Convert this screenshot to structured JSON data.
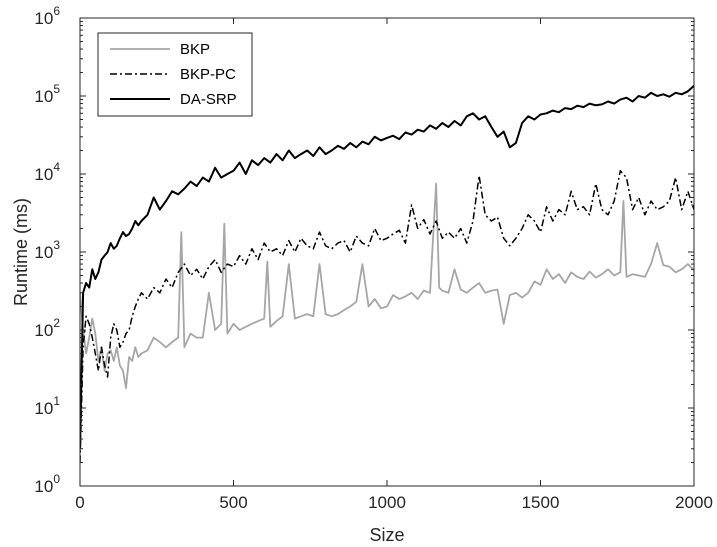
{
  "chart_data": {
    "type": "line",
    "title": "",
    "xlabel": "Size",
    "ylabel": "Runtime (ms)",
    "xlim": [
      0,
      2000
    ],
    "ylim": [
      1,
      1000000
    ],
    "yscale": "log",
    "grid": false,
    "legend_position": "top-left",
    "x_ticks": [
      0,
      500,
      1000,
      1500,
      2000
    ],
    "x_tick_labels": [
      "0",
      "500",
      "1000",
      "1500",
      "2000"
    ],
    "y_ticks": [
      1,
      10,
      100,
      1000,
      10000,
      100000,
      1000000
    ],
    "y_tick_base": "10",
    "y_tick_exponents": [
      "0",
      "1",
      "2",
      "3",
      "4",
      "5",
      "6"
    ],
    "series": [
      {
        "name": "BKP",
        "color": "#a6a6a6",
        "dash": "solid",
        "x": [
          0,
          10,
          20,
          30,
          40,
          50,
          60,
          70,
          80,
          90,
          100,
          110,
          120,
          130,
          140,
          150,
          160,
          170,
          180,
          190,
          200,
          220,
          240,
          260,
          280,
          300,
          320,
          330,
          340,
          360,
          380,
          400,
          420,
          440,
          460,
          470,
          480,
          500,
          520,
          540,
          560,
          580,
          600,
          610,
          620,
          640,
          660,
          680,
          700,
          720,
          740,
          760,
          780,
          800,
          820,
          840,
          860,
          880,
          900,
          920,
          940,
          960,
          980,
          1000,
          1020,
          1040,
          1060,
          1080,
          1100,
          1120,
          1140,
          1160,
          1170,
          1180,
          1200,
          1220,
          1240,
          1260,
          1280,
          1300,
          1320,
          1340,
          1360,
          1380,
          1400,
          1420,
          1440,
          1460,
          1480,
          1500,
          1520,
          1540,
          1560,
          1580,
          1600,
          1620,
          1640,
          1660,
          1680,
          1700,
          1720,
          1740,
          1760,
          1770,
          1780,
          1800,
          1820,
          1840,
          1860,
          1880,
          1900,
          1920,
          1940,
          1960,
          1980,
          2000
        ],
        "y": [
          300,
          100,
          50,
          80,
          140,
          90,
          40,
          60,
          30,
          50,
          55,
          40,
          60,
          35,
          30,
          18,
          45,
          40,
          60,
          45,
          50,
          55,
          80,
          70,
          60,
          70,
          80,
          1800,
          60,
          90,
          80,
          80,
          300,
          100,
          120,
          2300,
          90,
          120,
          100,
          110,
          120,
          130,
          140,
          750,
          110,
          130,
          150,
          700,
          140,
          150,
          160,
          150,
          700,
          160,
          150,
          160,
          180,
          200,
          230,
          700,
          200,
          250,
          190,
          200,
          280,
          250,
          270,
          300,
          250,
          320,
          300,
          7500,
          350,
          320,
          300,
          600,
          330,
          300,
          350,
          400,
          300,
          320,
          330,
          120,
          280,
          300,
          260,
          300,
          420,
          380,
          600,
          450,
          520,
          400,
          550,
          480,
          450,
          560,
          470,
          520,
          600,
          500,
          550,
          4500,
          480,
          520,
          500,
          480,
          700,
          1300,
          680,
          650,
          550,
          600,
          700,
          580
        ]
      },
      {
        "name": "BKP-PC",
        "color": "#000000",
        "dash": "dashdot",
        "x": [
          0,
          10,
          20,
          30,
          40,
          50,
          60,
          70,
          80,
          90,
          100,
          110,
          120,
          130,
          140,
          150,
          160,
          170,
          180,
          190,
          200,
          220,
          240,
          260,
          280,
          300,
          320,
          340,
          360,
          380,
          400,
          420,
          440,
          460,
          480,
          500,
          520,
          540,
          560,
          580,
          600,
          620,
          640,
          660,
          680,
          700,
          720,
          740,
          760,
          780,
          800,
          820,
          840,
          860,
          880,
          900,
          920,
          940,
          960,
          980,
          1000,
          1020,
          1040,
          1060,
          1080,
          1100,
          1120,
          1140,
          1160,
          1180,
          1200,
          1220,
          1240,
          1260,
          1280,
          1300,
          1320,
          1340,
          1360,
          1380,
          1400,
          1420,
          1440,
          1460,
          1480,
          1500,
          1520,
          1540,
          1560,
          1580,
          1600,
          1620,
          1640,
          1660,
          1680,
          1700,
          1720,
          1740,
          1760,
          1780,
          1800,
          1820,
          1840,
          1860,
          1880,
          1900,
          1920,
          1940,
          1960,
          1980,
          2000
        ],
        "y": [
          2,
          60,
          150,
          120,
          80,
          50,
          30,
          60,
          35,
          25,
          80,
          120,
          100,
          60,
          70,
          90,
          100,
          150,
          200,
          250,
          300,
          250,
          350,
          300,
          450,
          350,
          550,
          700,
          500,
          600,
          450,
          650,
          800,
          550,
          700,
          650,
          900,
          700,
          1100,
          800,
          1300,
          1000,
          1100,
          900,
          1400,
          1000,
          1500,
          1200,
          1100,
          1800,
          1200,
          1100,
          1300,
          1400,
          1000,
          1600,
          1300,
          1200,
          2000,
          1400,
          1500,
          1700,
          1900,
          1300,
          4000,
          2000,
          2600,
          1700,
          2500,
          1500,
          1800,
          1500,
          2000,
          1300,
          2500,
          9500,
          3000,
          2500,
          2800,
          1500,
          1200,
          1500,
          2000,
          3000,
          2500,
          1800,
          3800,
          2500,
          3500,
          3000,
          6000,
          3500,
          3800,
          3000,
          7500,
          3500,
          3000,
          4500,
          11000,
          9000,
          3500,
          5000,
          3000,
          4500,
          3500,
          3800,
          4500,
          9000,
          3500,
          6000,
          3500
        ]
      },
      {
        "name": "DA-SRP",
        "color": "#000000",
        "dash": "solid",
        "x": [
          0,
          10,
          20,
          30,
          40,
          50,
          60,
          70,
          80,
          90,
          100,
          110,
          120,
          130,
          140,
          150,
          160,
          170,
          180,
          190,
          200,
          220,
          240,
          260,
          280,
          300,
          320,
          340,
          360,
          380,
          400,
          420,
          440,
          460,
          480,
          500,
          520,
          540,
          560,
          580,
          600,
          620,
          640,
          660,
          680,
          700,
          720,
          740,
          760,
          780,
          800,
          820,
          840,
          860,
          880,
          900,
          920,
          940,
          960,
          980,
          1000,
          1020,
          1040,
          1060,
          1080,
          1100,
          1120,
          1140,
          1160,
          1180,
          1200,
          1220,
          1240,
          1260,
          1280,
          1300,
          1320,
          1340,
          1360,
          1380,
          1400,
          1420,
          1440,
          1460,
          1480,
          1500,
          1520,
          1540,
          1560,
          1580,
          1600,
          1620,
          1640,
          1660,
          1680,
          1700,
          1720,
          1740,
          1760,
          1780,
          1800,
          1820,
          1840,
          1860,
          1880,
          1900,
          1920,
          1940,
          1960,
          1980,
          2000
        ],
        "y": [
          3,
          300,
          400,
          350,
          600,
          450,
          550,
          800,
          900,
          1000,
          1300,
          1100,
          1200,
          1500,
          1800,
          1600,
          1700,
          2000,
          2500,
          2200,
          2500,
          3000,
          5000,
          3500,
          4500,
          6000,
          5500,
          6500,
          8000,
          7000,
          9000,
          8000,
          12000,
          9000,
          10000,
          11000,
          14000,
          10000,
          15000,
          13000,
          16000,
          14000,
          18000,
          15000,
          20000,
          16000,
          18000,
          20000,
          17000,
          22000,
          18000,
          20000,
          23000,
          21000,
          25000,
          22000,
          26000,
          24000,
          30000,
          27000,
          29000,
          31000,
          28000,
          34000,
          32000,
          37000,
          35000,
          42000,
          38000,
          45000,
          40000,
          48000,
          42000,
          55000,
          60000,
          50000,
          55000,
          40000,
          30000,
          35000,
          22000,
          25000,
          45000,
          55000,
          50000,
          58000,
          60000,
          65000,
          62000,
          70000,
          68000,
          75000,
          72000,
          80000,
          76000,
          78000,
          85000,
          80000,
          90000,
          95000,
          85000,
          100000,
          95000,
          110000,
          100000,
          105000,
          98000,
          110000,
          105000,
          115000,
          135000
        ]
      }
    ]
  }
}
